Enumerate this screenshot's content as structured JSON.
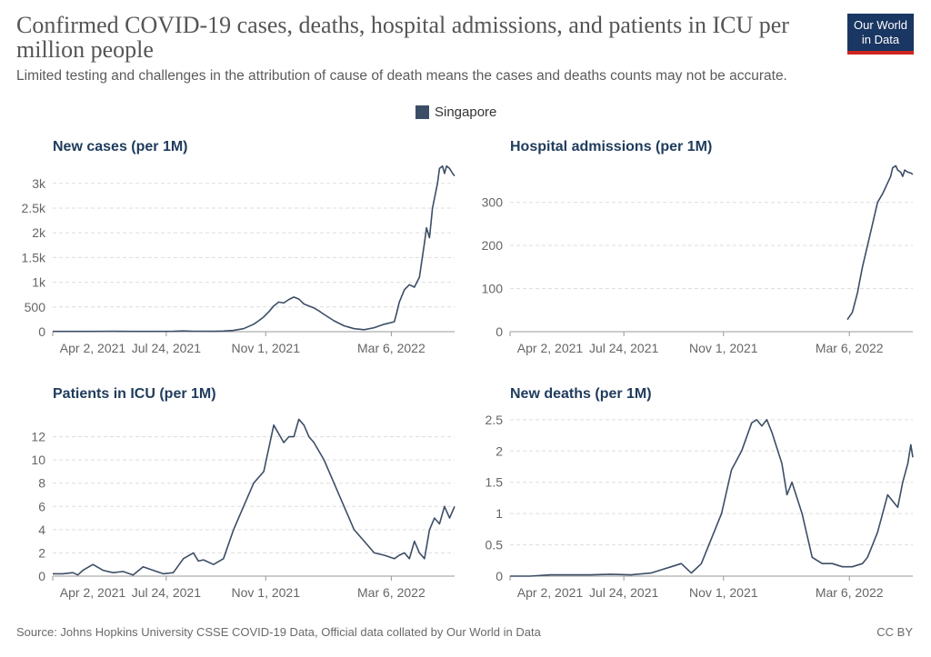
{
  "header": {
    "title": "Confirmed COVID-19 cases, deaths, hospital admissions, and patients in ICU per million people",
    "subtitle": "Limited testing and challenges in the attribution of cause of death means the cases and deaths counts may not be accurate."
  },
  "logo": {
    "line1": "Our World",
    "line2": "in Data"
  },
  "legend": {
    "label": "Singapore",
    "color": "#3c4e66"
  },
  "colors": {
    "line": "#3c4e66",
    "panel_title": "#1f3b5c",
    "grid": "#dddddd",
    "axis_text": "#666666"
  },
  "footer": {
    "source": "Source: Johns Hopkins University CSSE COVID-19 Data, Official data collated by Our World in Data",
    "license": "CC BY"
  },
  "chart_data": [
    {
      "type": "line",
      "title": "New cases (per 1M)",
      "series_name": "Singapore",
      "x_ticks": [
        "Apr 2, 2021",
        "Jul 24, 2021",
        "Nov 1, 2021",
        "Mar 6, 2022"
      ],
      "x_range_days": [
        0,
        400
      ],
      "ylim": [
        0,
        3400
      ],
      "y_ticks": [
        0,
        500,
        1000,
        1500,
        2000,
        2500,
        3000
      ],
      "y_tick_labels": [
        "0",
        "500",
        "1k",
        "1.5k",
        "2k",
        "2.5k",
        "3k"
      ],
      "x": [
        0,
        20,
        40,
        60,
        80,
        100,
        120,
        130,
        140,
        160,
        170,
        180,
        190,
        200,
        205,
        210,
        215,
        220,
        225,
        230,
        235,
        240,
        245,
        250,
        255,
        260,
        265,
        270,
        280,
        290,
        300,
        310,
        320,
        330,
        340,
        342,
        345,
        350,
        355,
        360,
        365,
        370,
        372,
        375,
        378,
        380,
        383,
        385,
        388,
        390,
        392,
        395,
        398,
        400
      ],
      "y": [
        5,
        5,
        5,
        10,
        6,
        6,
        8,
        15,
        10,
        8,
        12,
        25,
        60,
        150,
        220,
        300,
        400,
        520,
        600,
        580,
        650,
        700,
        660,
        560,
        520,
        480,
        420,
        350,
        220,
        120,
        60,
        40,
        80,
        150,
        200,
        350,
        600,
        850,
        950,
        900,
        1100,
        1800,
        2100,
        1900,
        2500,
        2700,
        3000,
        3300,
        3350,
        3200,
        3350,
        3300,
        3200,
        3150
      ]
    },
    {
      "type": "line",
      "title": "Hospital admissions (per 1M)",
      "series_name": "Singapore",
      "x_ticks": [
        "Apr 2, 2021",
        "Jul 24, 2021",
        "Nov 1, 2021",
        "Mar 6, 2022"
      ],
      "x_range_days": [
        0,
        400
      ],
      "ylim": [
        0,
        390
      ],
      "y_ticks": [
        0,
        100,
        200,
        300
      ],
      "y_tick_labels": [
        "0",
        "100",
        "200",
        "300"
      ],
      "x": [
        335,
        340,
        345,
        350,
        355,
        360,
        365,
        370,
        372,
        375,
        378,
        380,
        383,
        385,
        388,
        390,
        392,
        395,
        398,
        400
      ],
      "y": [
        28,
        45,
        90,
        150,
        200,
        250,
        300,
        320,
        330,
        345,
        360,
        380,
        385,
        375,
        370,
        360,
        375,
        370,
        368,
        365
      ]
    },
    {
      "type": "line",
      "title": "Patients in ICU (per 1M)",
      "series_name": "Singapore",
      "x_ticks": [
        "Apr 2, 2021",
        "Jul 24, 2021",
        "Nov 1, 2021",
        "Mar 6, 2022"
      ],
      "x_range_days": [
        0,
        400
      ],
      "ylim": [
        0,
        14
      ],
      "y_ticks": [
        0,
        2,
        4,
        6,
        8,
        10,
        12
      ],
      "y_tick_labels": [
        "0",
        "2",
        "4",
        "6",
        "8",
        "10",
        "12"
      ],
      "x": [
        0,
        10,
        20,
        25,
        30,
        40,
        50,
        60,
        70,
        80,
        90,
        100,
        110,
        120,
        130,
        140,
        145,
        150,
        160,
        170,
        180,
        190,
        200,
        210,
        220,
        230,
        235,
        240,
        245,
        250,
        255,
        260,
        270,
        280,
        290,
        300,
        310,
        320,
        330,
        340,
        345,
        350,
        355,
        360,
        365,
        370,
        375,
        380,
        385,
        390,
        395,
        400
      ],
      "y": [
        0.2,
        0.2,
        0.3,
        0.1,
        0.5,
        1.0,
        0.5,
        0.3,
        0.4,
        0.1,
        0.8,
        0.5,
        0.2,
        0.3,
        1.5,
        2.0,
        1.3,
        1.4,
        1.0,
        1.5,
        4.0,
        6.0,
        8.0,
        9.0,
        13.0,
        11.5,
        12.0,
        12.0,
        13.5,
        13.0,
        12.0,
        11.5,
        10.0,
        8.0,
        6.0,
        4.0,
        3.0,
        2.0,
        1.8,
        1.5,
        1.8,
        2.0,
        1.5,
        3.0,
        2.0,
        1.5,
        4.0,
        5.0,
        4.5,
        6.0,
        5.0,
        6.0
      ]
    },
    {
      "type": "line",
      "title": "New deaths (per 1M)",
      "series_name": "Singapore",
      "x_ticks": [
        "Apr 2, 2021",
        "Jul 24, 2021",
        "Nov 1, 2021",
        "Mar 6, 2022"
      ],
      "x_range_days": [
        0,
        400
      ],
      "ylim": [
        0,
        2.6
      ],
      "y_ticks": [
        0,
        0.5,
        1,
        1.5,
        2,
        2.5
      ],
      "y_tick_labels": [
        "0",
        "0.5",
        "1",
        "1.5",
        "2",
        "2.5"
      ],
      "x": [
        0,
        20,
        40,
        60,
        80,
        100,
        120,
        140,
        150,
        160,
        170,
        180,
        190,
        200,
        210,
        220,
        230,
        240,
        245,
        250,
        255,
        260,
        270,
        275,
        280,
        290,
        300,
        310,
        320,
        330,
        340,
        350,
        355,
        360,
        365,
        370,
        375,
        380,
        385,
        390,
        395,
        398,
        400
      ],
      "y": [
        0,
        0,
        0.02,
        0.02,
        0.02,
        0.03,
        0.02,
        0.05,
        0.1,
        0.15,
        0.2,
        0.05,
        0.2,
        0.6,
        1.0,
        1.7,
        2.0,
        2.45,
        2.5,
        2.4,
        2.5,
        2.3,
        1.8,
        1.3,
        1.5,
        1.0,
        0.3,
        0.2,
        0.2,
        0.15,
        0.15,
        0.2,
        0.3,
        0.5,
        0.7,
        1.0,
        1.3,
        1.2,
        1.1,
        1.5,
        1.8,
        2.1,
        1.9
      ]
    }
  ]
}
